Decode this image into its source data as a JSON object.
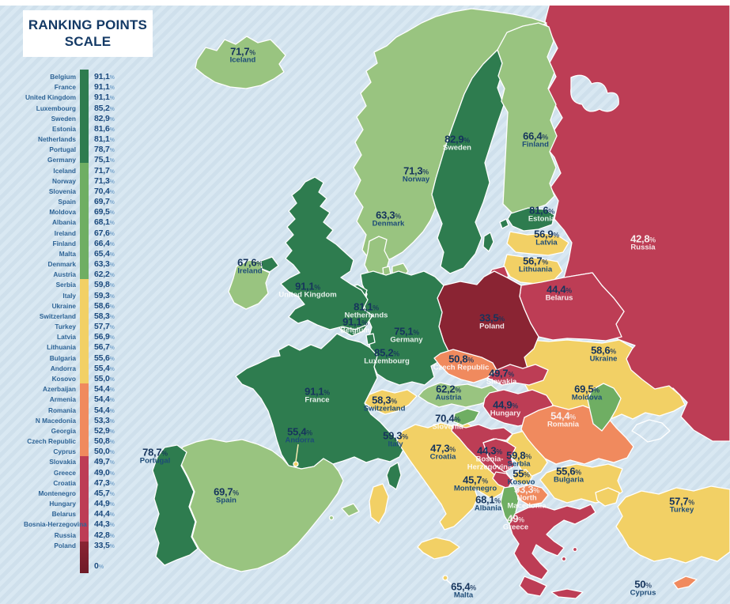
{
  "palette": {
    "dark_green": "#2e7c4f",
    "mid_green": "#6fae63",
    "light_green": "#99c480",
    "yellow": "#f2d065",
    "orange": "#f08a5e",
    "red": "#bd3d55",
    "dark_red": "#8a2433",
    "dark_red_end": "#6f1b28",
    "sea": "#cfe0ec",
    "sea_stripe": "#d9e8f2",
    "title_color": "#143a66",
    "value_navy": "#16345c"
  },
  "legend": {
    "title": "RANKING POINTS SCALE",
    "zero_label": "0%",
    "items": [
      {
        "country": "Belgium",
        "value": "91,1%",
        "tier": "dark_green"
      },
      {
        "country": "France",
        "value": "91,1%",
        "tier": "dark_green"
      },
      {
        "country": "United Kingdom",
        "value": "91,1%",
        "tier": "dark_green"
      },
      {
        "country": "Luxembourg",
        "value": "85,2%",
        "tier": "dark_green"
      },
      {
        "country": "Sweden",
        "value": "82,9%",
        "tier": "dark_green"
      },
      {
        "country": "Estonia",
        "value": "81,6%",
        "tier": "dark_green"
      },
      {
        "country": "Netherlands",
        "value": "81,1%",
        "tier": "dark_green"
      },
      {
        "country": "Portugal",
        "value": "78,7%",
        "tier": "dark_green"
      },
      {
        "country": "Germany",
        "value": "75,1%",
        "tier": "dark_green"
      },
      {
        "country": "Iceland",
        "value": "71,7%",
        "tier": "mid_green"
      },
      {
        "country": "Norway",
        "value": "71,3%",
        "tier": "mid_green"
      },
      {
        "country": "Slovenia",
        "value": "70,4%",
        "tier": "mid_green"
      },
      {
        "country": "Spain",
        "value": "69,7%",
        "tier": "mid_green"
      },
      {
        "country": "Moldova",
        "value": "69,5%",
        "tier": "mid_green"
      },
      {
        "country": "Albania",
        "value": "68,1%",
        "tier": "mid_green"
      },
      {
        "country": "Ireland",
        "value": "67,6%",
        "tier": "mid_green"
      },
      {
        "country": "Finland",
        "value": "66,4%",
        "tier": "mid_green"
      },
      {
        "country": "Malta",
        "value": "65,4%",
        "tier": "mid_green"
      },
      {
        "country": "Denmark",
        "value": "63,3%",
        "tier": "mid_green"
      },
      {
        "country": "Austria",
        "value": "62,2%",
        "tier": "mid_green"
      },
      {
        "country": "Serbia",
        "value": "59,8%",
        "tier": "yellow"
      },
      {
        "country": "Italy",
        "value": "59,3%",
        "tier": "yellow"
      },
      {
        "country": "Ukraine",
        "value": "58,6%",
        "tier": "yellow"
      },
      {
        "country": "Switzerland",
        "value": "58,3%",
        "tier": "yellow"
      },
      {
        "country": "Turkey",
        "value": "57,7%",
        "tier": "yellow"
      },
      {
        "country": "Latvia",
        "value": "56,9%",
        "tier": "yellow"
      },
      {
        "country": "Lithuania",
        "value": "56,7%",
        "tier": "yellow"
      },
      {
        "country": "Bulgaria",
        "value": "55,6%",
        "tier": "yellow"
      },
      {
        "country": "Andorra",
        "value": "55,4%",
        "tier": "yellow"
      },
      {
        "country": "Kosovo",
        "value": "55,0%",
        "tier": "yellow"
      },
      {
        "country": "Azerbaijan",
        "value": "54,4%",
        "tier": "orange"
      },
      {
        "country": "Armenia",
        "value": "54,4%",
        "tier": "orange"
      },
      {
        "country": "Romania",
        "value": "54,4%",
        "tier": "orange"
      },
      {
        "country": "N Macedonia",
        "value": "53,3%",
        "tier": "orange"
      },
      {
        "country": "Georgia",
        "value": "52,9%",
        "tier": "orange"
      },
      {
        "country": "Czech Republic",
        "value": "50,8%",
        "tier": "orange"
      },
      {
        "country": "Cyprus",
        "value": "50,0%",
        "tier": "orange"
      },
      {
        "country": "Slovakia",
        "value": "49,7%",
        "tier": "red"
      },
      {
        "country": "Greece",
        "value": "49,0%",
        "tier": "red"
      },
      {
        "country": "Croatia",
        "value": "47,3%",
        "tier": "red"
      },
      {
        "country": "Montenegro",
        "value": "45,7%",
        "tier": "red"
      },
      {
        "country": "Hungary",
        "value": "44,9%",
        "tier": "red"
      },
      {
        "country": "Belarus",
        "value": "44,4%",
        "tier": "red"
      },
      {
        "country": "Bosnia-Herzegovina",
        "value": "44,3%",
        "tier": "red"
      },
      {
        "country": "Russia",
        "value": "42,8%",
        "tier": "red"
      },
      {
        "country": "Poland",
        "value": "33,5%",
        "tier": "dark_red"
      }
    ]
  },
  "map": {
    "labels": [
      {
        "id": "iceland",
        "value": "71,7%",
        "name": "Iceland"
      },
      {
        "id": "norway",
        "value": "71,3%",
        "name": "Norway"
      },
      {
        "id": "sweden",
        "value": "82,9%",
        "name": "Sweden"
      },
      {
        "id": "finland",
        "value": "66,4%",
        "name": "Finland"
      },
      {
        "id": "russia",
        "value": "42,8%",
        "name": "Russia"
      },
      {
        "id": "estonia",
        "value": "81,6%",
        "name": "Estonia"
      },
      {
        "id": "latvia",
        "value": "56,9%",
        "name": "Latvia"
      },
      {
        "id": "lithuania",
        "value": "56,7%",
        "name": "Lithuania"
      },
      {
        "id": "belarus",
        "value": "44,4%",
        "name": "Belarus"
      },
      {
        "id": "denmark",
        "value": "63,3%",
        "name": "Denmark"
      },
      {
        "id": "ireland",
        "value": "67,6%",
        "name": "Ireland"
      },
      {
        "id": "uk",
        "value": "91,1%",
        "name": "United Kingdom"
      },
      {
        "id": "netherlands",
        "value": "81,1%",
        "name": "Netherlands"
      },
      {
        "id": "belgium",
        "value": "91,1%",
        "name": "Belgium"
      },
      {
        "id": "luxembourg",
        "value": "85,2%",
        "name": "Luxembourg"
      },
      {
        "id": "germany",
        "value": "75,1%",
        "name": "Germany"
      },
      {
        "id": "poland",
        "value": "33,5%",
        "name": "Poland"
      },
      {
        "id": "czech",
        "value": "50,8%",
        "name": "Czech Republic"
      },
      {
        "id": "slovakia",
        "value": "49,7%",
        "name": "Slovakia"
      },
      {
        "id": "austria",
        "value": "62,2%",
        "name": "Austria"
      },
      {
        "id": "hungary",
        "value": "44,9%",
        "name": "Hungary"
      },
      {
        "id": "switzerland",
        "value": "58,3%",
        "name": "Switzerland"
      },
      {
        "id": "france",
        "value": "91,1%",
        "name": "France"
      },
      {
        "id": "slovenia",
        "value": "70,4%",
        "name": "Slovenia"
      },
      {
        "id": "italy",
        "value": "59,3%",
        "name": "Italy"
      },
      {
        "id": "croatia",
        "value": "47,3%",
        "name": "Croatia"
      },
      {
        "id": "bosnia",
        "value": "44,3%",
        "name": "Bosnia-\nHerzegovina"
      },
      {
        "id": "serbia",
        "value": "59,8%",
        "name": "Serbia"
      },
      {
        "id": "montenegro",
        "value": "45,7%",
        "name": "Montenegro"
      },
      {
        "id": "kosovo",
        "value": "55%",
        "name": "Kosovo"
      },
      {
        "id": "albania",
        "value": "68,1%",
        "name": "Albania"
      },
      {
        "id": "nmacedonia",
        "value": "53,3%",
        "name": "North\nMacedonia"
      },
      {
        "id": "greece",
        "value": "49%",
        "name": "Greece"
      },
      {
        "id": "bulgaria",
        "value": "55,6%",
        "name": "Bulgaria"
      },
      {
        "id": "romania",
        "value": "54,4%",
        "name": "Romania"
      },
      {
        "id": "moldova",
        "value": "69,5%",
        "name": "Moldova"
      },
      {
        "id": "ukraine",
        "value": "58,6%",
        "name": "Ukraine"
      },
      {
        "id": "turkey",
        "value": "57,7%",
        "name": "Turkey"
      },
      {
        "id": "cyprus",
        "value": "50%",
        "name": "Cyprus"
      },
      {
        "id": "malta",
        "value": "65,4%",
        "name": "Malta"
      },
      {
        "id": "spain",
        "value": "69,7%",
        "name": "Spain"
      },
      {
        "id": "portugal",
        "value": "78,7%",
        "name": "Portugal"
      },
      {
        "id": "andorra",
        "value": "55,4%",
        "name": "Andorra"
      }
    ]
  }
}
